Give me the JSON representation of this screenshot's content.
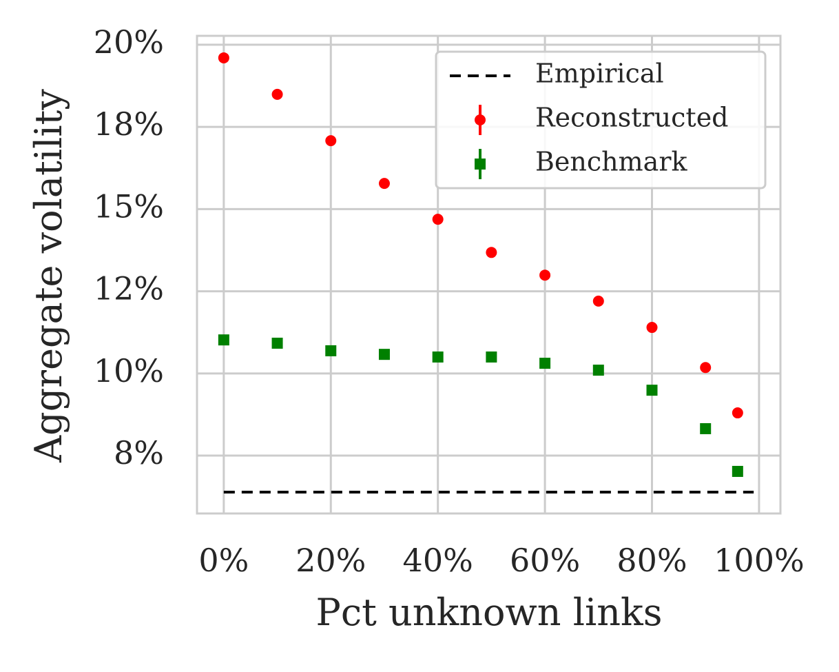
{
  "chart_data": {
    "type": "scatter",
    "xlabel": "Pct unknown links",
    "ylabel": "Aggregate volatility",
    "xlim": [
      -5,
      104
    ],
    "xticks": [
      {
        "value": 0,
        "label": "0%"
      },
      {
        "value": 20,
        "label": "20%"
      },
      {
        "value": 40,
        "label": "40%"
      },
      {
        "value": 60,
        "label": "60%"
      },
      {
        "value": 80,
        "label": "80%"
      },
      {
        "value": 100,
        "label": "100%"
      }
    ],
    "ylim": [
      5.74,
      20.27
    ],
    "yticks": [
      {
        "value": 7.5,
        "label": "8%"
      },
      {
        "value": 10,
        "label": "10%"
      },
      {
        "value": 12.5,
        "label": "12%"
      },
      {
        "value": 15,
        "label": "15%"
      },
      {
        "value": 17.5,
        "label": "18%"
      },
      {
        "value": 20,
        "label": "20%"
      }
    ],
    "grid": true,
    "legend": "upper right",
    "series": [
      {
        "name": "Empirical",
        "color": "#000000",
        "marker": "dashed-line",
        "x": [
          0,
          99
        ],
        "values": [
          6.39,
          6.39
        ]
      },
      {
        "name": "Reconstructed",
        "color": "#ff0000",
        "marker": "circle",
        "x": [
          0,
          10,
          20,
          30,
          40,
          50,
          60,
          70,
          80,
          90,
          96
        ],
        "values": [
          19.6,
          18.49,
          17.08,
          15.78,
          14.69,
          13.68,
          12.99,
          12.2,
          11.4,
          10.18,
          8.8
        ]
      },
      {
        "name": "Benchmark",
        "color": "#008000",
        "marker": "square",
        "x": [
          0,
          10,
          20,
          30,
          40,
          50,
          60,
          70,
          80,
          90,
          96
        ],
        "values": [
          11.02,
          10.92,
          10.69,
          10.58,
          10.5,
          10.5,
          10.31,
          10.1,
          9.49,
          8.32,
          7.02
        ]
      }
    ]
  }
}
